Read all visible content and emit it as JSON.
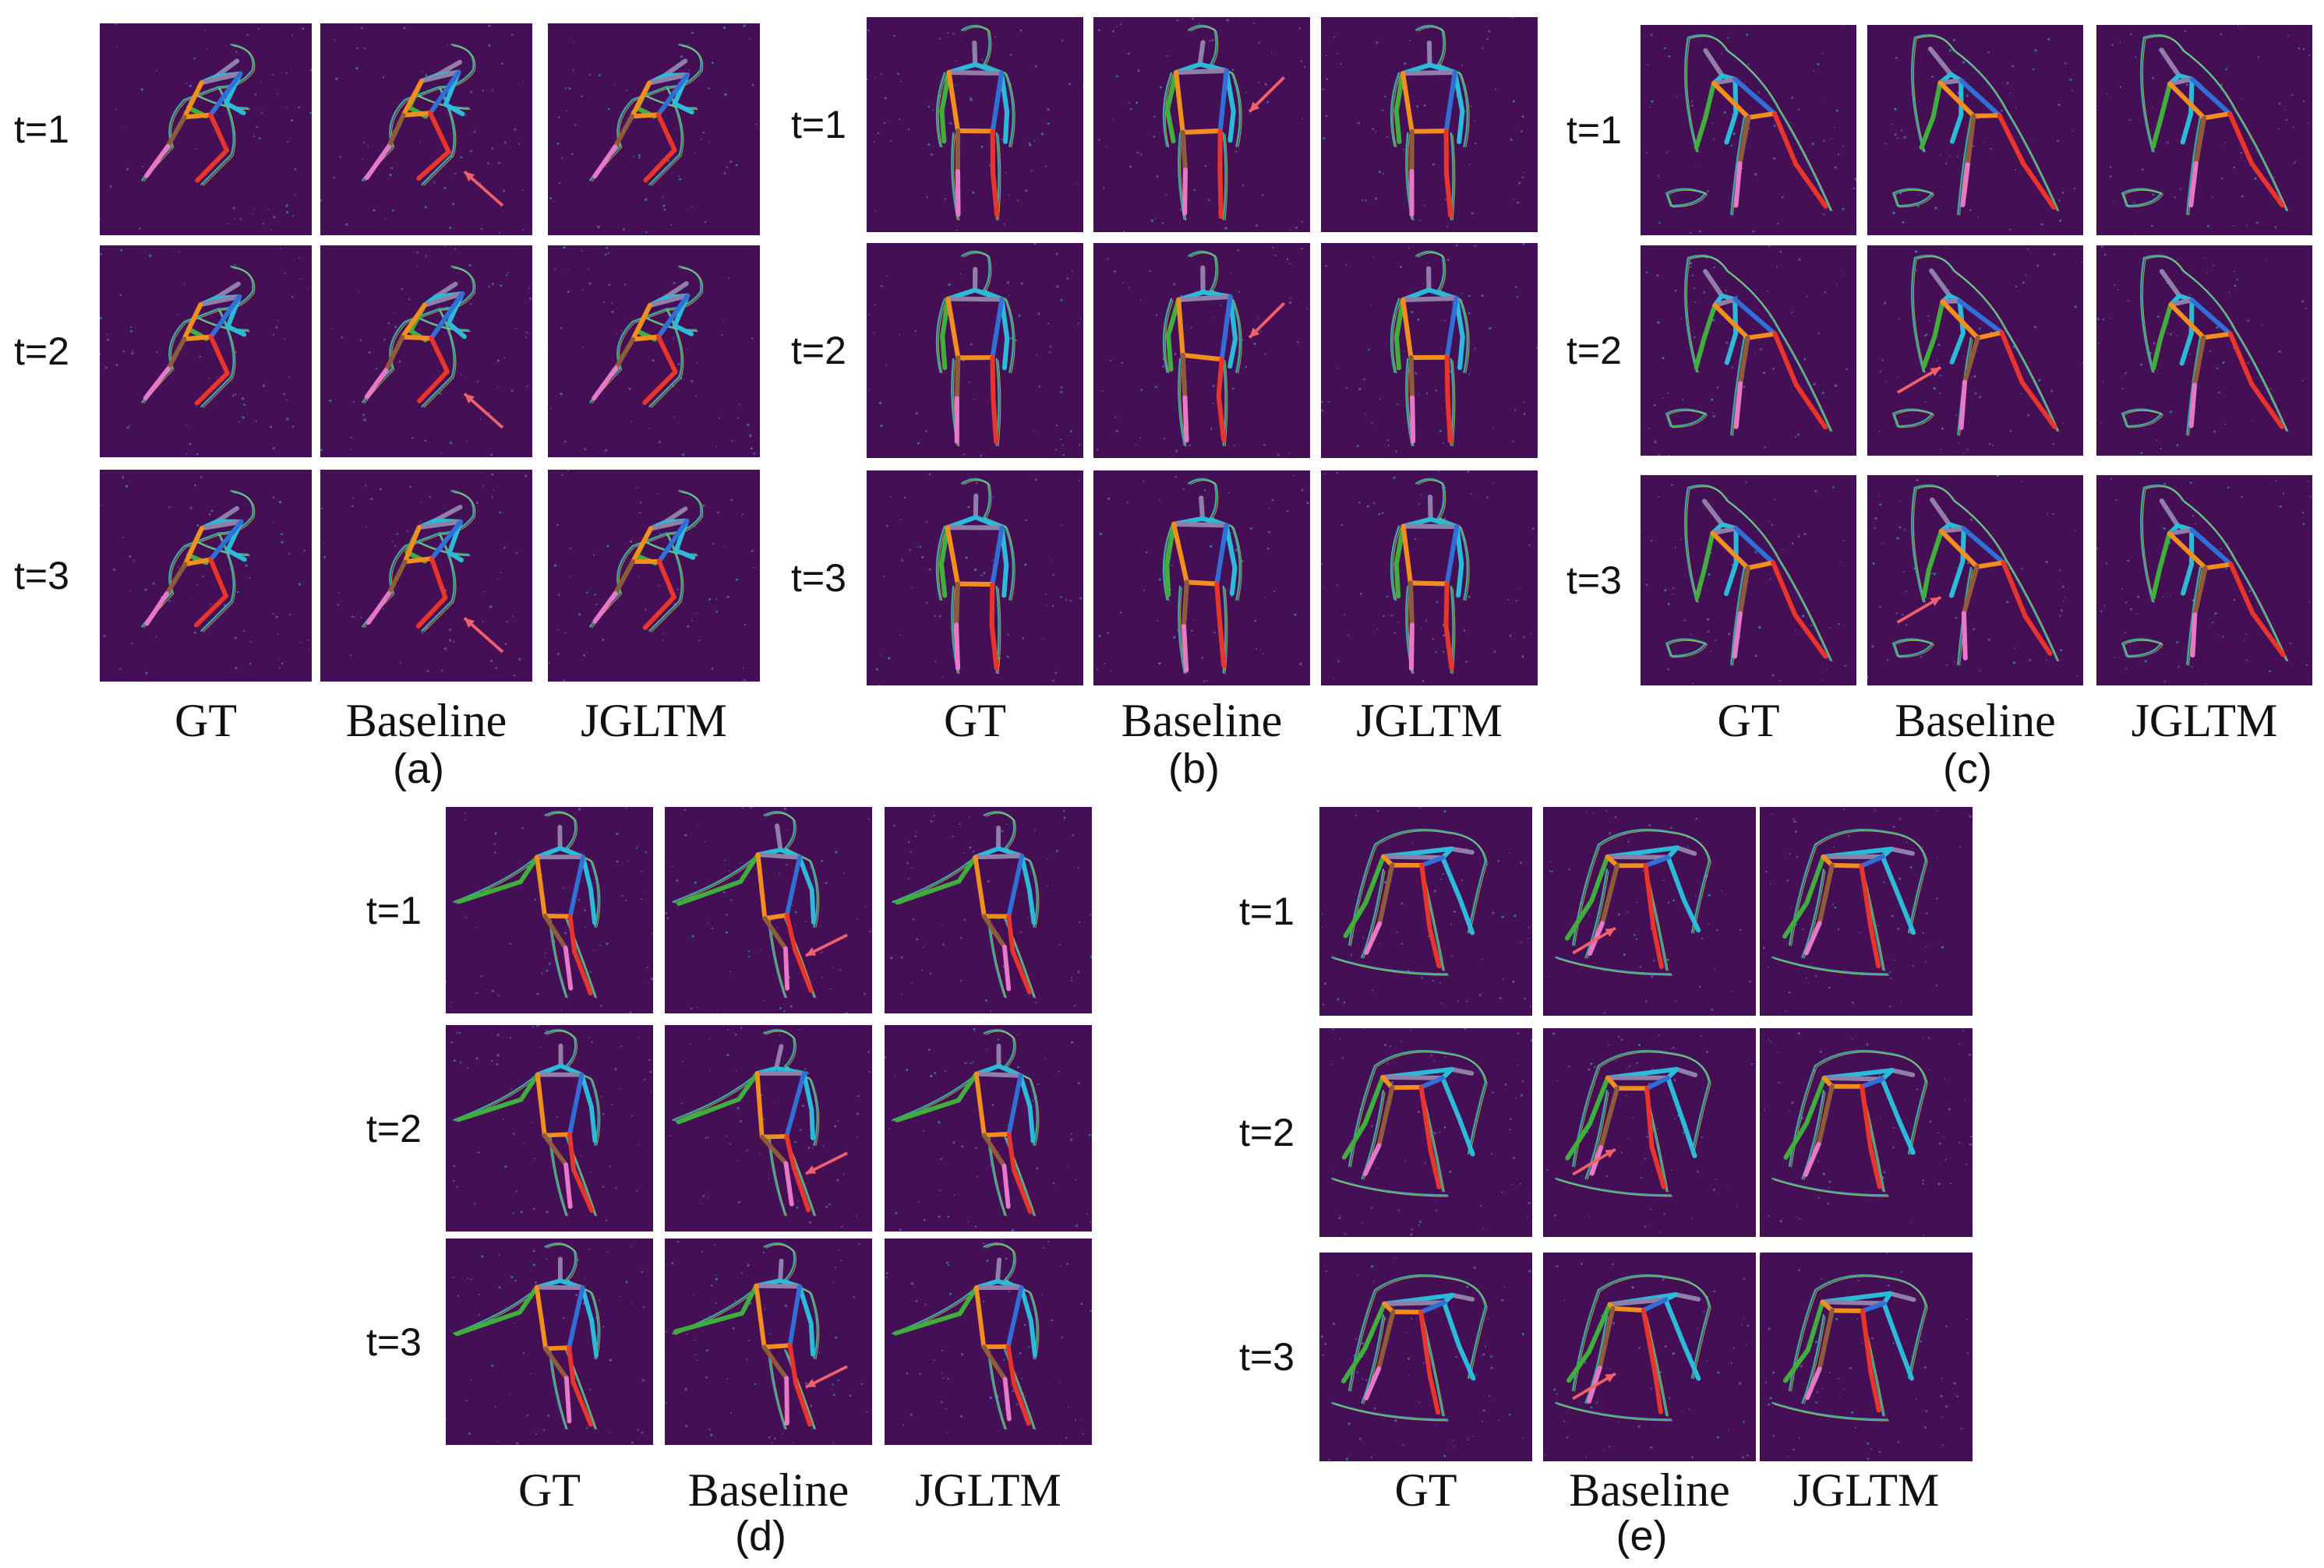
{
  "panels": [
    {
      "id": "a",
      "label": "(a)",
      "columns": [
        "GT",
        "Baseline",
        "JGLTM"
      ],
      "rows": [
        "t=1",
        "t=2",
        "t=3"
      ],
      "pose": "crouch",
      "arrows": [
        "bottom-right",
        "bottom-right",
        "bottom-right"
      ]
    },
    {
      "id": "b",
      "label": "(b)",
      "columns": [
        "GT",
        "Baseline",
        "JGLTM"
      ],
      "rows": [
        "t=1",
        "t=2",
        "t=3"
      ],
      "pose": "front",
      "arrows": [
        "top-right",
        "top-right",
        "none"
      ]
    },
    {
      "id": "c",
      "label": "(c)",
      "columns": [
        "GT",
        "Baseline",
        "JGLTM"
      ],
      "rows": [
        "t=1",
        "t=2",
        "t=3"
      ],
      "pose": "lean",
      "arrows": [
        "none",
        "left",
        "left"
      ]
    },
    {
      "id": "d",
      "label": "(d)",
      "columns": [
        "GT",
        "Baseline",
        "JGLTM"
      ],
      "rows": [
        "t=1",
        "t=2",
        "t=3"
      ],
      "pose": "stand",
      "arrows": [
        "right",
        "right",
        "right"
      ]
    },
    {
      "id": "e",
      "label": "(e)",
      "columns": [
        "GT",
        "Baseline",
        "JGLTM"
      ],
      "rows": [
        "t=1",
        "t=2",
        "t=3"
      ],
      "pose": "bend",
      "arrows": [
        "left",
        "left",
        "left"
      ]
    }
  ],
  "colors": {
    "cell_background": "#440f55",
    "arrow": "#f0606a",
    "limbs": [
      "#e8342a",
      "#3fae3a",
      "#f28e1e",
      "#2f6fd6",
      "#e877c8",
      "#8f5a3a",
      "#8f7fa8",
      "#2bbbd8"
    ]
  }
}
